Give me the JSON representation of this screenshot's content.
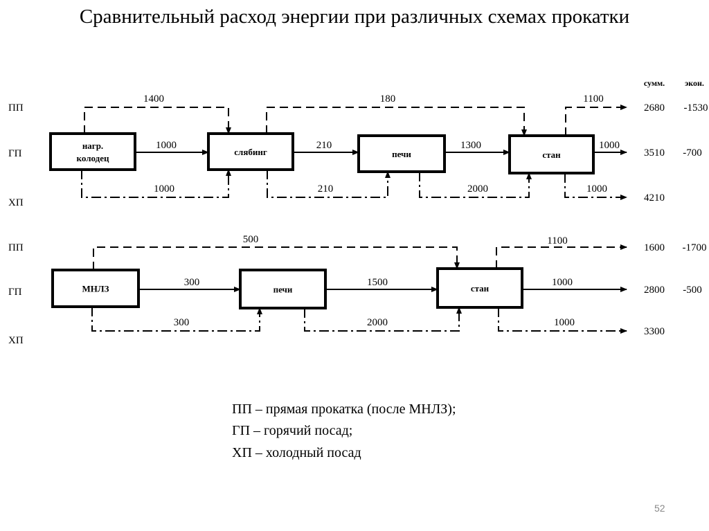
{
  "title": "Сравнительный расход энергии при различных схемах прокатки",
  "columns": {
    "sum": "сумм.",
    "econ": "экон."
  },
  "row_labels": {
    "pp": "ПП",
    "gp": "ГП",
    "hp": "ХП"
  },
  "diagram1": {
    "boxes": [
      "нагр.\nколодец",
      "слябинг",
      "печи",
      "стан"
    ],
    "pp_flows": [
      "1400",
      "180",
      "1100"
    ],
    "gp_flows": [
      "1000",
      "210",
      "1300",
      "1000"
    ],
    "hp_flows": [
      "1000",
      "210",
      "2000",
      "1000"
    ],
    "totals": {
      "pp": "2680",
      "gp": "3510",
      "hp": "4210"
    },
    "econ": {
      "pp": "-1530",
      "gp": "-700"
    }
  },
  "diagram2": {
    "boxes": [
      "МНЛЗ",
      "печи",
      "стан"
    ],
    "pp_flows": [
      "500",
      "1100"
    ],
    "gp_flows": [
      "300",
      "1500",
      "1000"
    ],
    "hp_flows": [
      "300",
      "2000",
      "1000"
    ],
    "totals": {
      "pp": "1600",
      "gp": "2800",
      "hp": "3300"
    },
    "econ": {
      "pp": "-1700",
      "gp": "-500"
    }
  },
  "legend": [
    "ПП – прямая прокатка (после МНЛЗ);",
    "ГП – горячий посад;",
    "ХП – холодный посад"
  ],
  "page_number": "52"
}
